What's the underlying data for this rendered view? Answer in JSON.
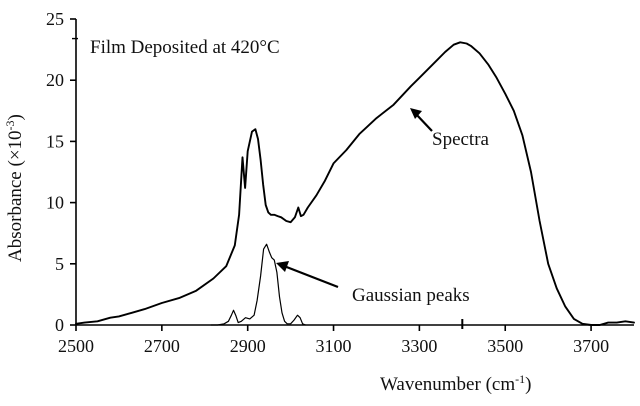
{
  "chart_data": {
    "type": "line",
    "annotation_text": "Film Deposited at 420°C",
    "xlabel": "Wavenumber (cm",
    "xlabel_sup": "-1",
    "xlabel_end": ")",
    "ylabel": "Absorbance (×10",
    "ylabel_sup": "-3",
    "ylabel_end": ")",
    "xlim": [
      2500,
      3800
    ],
    "ylim": [
      0,
      25
    ],
    "x_ticks": [
      2500,
      2700,
      2900,
      3100,
      3300,
      3500,
      3700
    ],
    "x_tick_labels": [
      "2500",
      "2700",
      "2900",
      "3100",
      "3300",
      "3500",
      "3700"
    ],
    "y_ticks": [
      0,
      5,
      10,
      15,
      20,
      25
    ],
    "y_tick_labels": [
      "0",
      "5",
      "10",
      "15",
      "20",
      "25"
    ],
    "series": [
      {
        "name": "Spectra",
        "color": "#000000",
        "x": [
          2500,
          2520,
          2550,
          2580,
          2600,
          2630,
          2660,
          2700,
          2740,
          2780,
          2820,
          2850,
          2870,
          2880,
          2888,
          2894,
          2900,
          2910,
          2918,
          2924,
          2930,
          2936,
          2942,
          2948,
          2954,
          2962,
          2970,
          2978,
          2990,
          3000,
          3010,
          3018,
          3024,
          3030,
          3040,
          3060,
          3080,
          3100,
          3130,
          3160,
          3200,
          3240,
          3280,
          3300,
          3320,
          3340,
          3360,
          3380,
          3395,
          3410,
          3420,
          3440,
          3460,
          3480,
          3500,
          3520,
          3540,
          3560,
          3580,
          3600,
          3620,
          3640,
          3660,
          3680,
          3700,
          3720,
          3740,
          3760,
          3780,
          3800
        ],
        "y": [
          0.1,
          0.2,
          0.3,
          0.6,
          0.7,
          1.0,
          1.3,
          1.8,
          2.2,
          2.8,
          3.8,
          4.8,
          6.5,
          9.0,
          13.7,
          11.2,
          14.2,
          15.8,
          16.0,
          15.2,
          13.5,
          11.5,
          9.8,
          9.2,
          9.0,
          9.0,
          8.9,
          8.8,
          8.5,
          8.4,
          8.8,
          9.6,
          8.9,
          9.0,
          9.6,
          10.6,
          11.8,
          13.2,
          14.3,
          15.6,
          16.9,
          18.0,
          19.5,
          20.2,
          20.9,
          21.6,
          22.3,
          22.9,
          23.1,
          23.0,
          22.8,
          22.2,
          21.3,
          20.2,
          18.9,
          17.5,
          15.5,
          12.5,
          8.5,
          5.0,
          3.0,
          1.5,
          0.5,
          0.1,
          0.0,
          0.0,
          0.2,
          0.2,
          0.3,
          0.2
        ],
        "label": "Spectra"
      },
      {
        "name": "Gaussian peaks",
        "color": "#000000",
        "x": [
          2815,
          2830,
          2845,
          2855,
          2862,
          2867,
          2872,
          2878,
          2885,
          2895,
          2905,
          2915,
          2922,
          2930,
          2937,
          2944,
          2950,
          2956,
          2962,
          2968,
          2974,
          2980,
          2986,
          2992,
          3000,
          3008,
          3016,
          3022,
          3028,
          3035
        ],
        "y": [
          0.0,
          0.0,
          0.1,
          0.3,
          0.8,
          1.2,
          0.8,
          0.2,
          0.3,
          0.6,
          0.5,
          0.8,
          2.0,
          4.0,
          6.2,
          6.6,
          6.0,
          5.5,
          5.3,
          4.3,
          2.3,
          1.0,
          0.3,
          0.1,
          0.1,
          0.4,
          0.8,
          0.6,
          0.1,
          0.0
        ],
        "label": "Gaussian peaks"
      }
    ],
    "grid": false,
    "legend": "none"
  }
}
